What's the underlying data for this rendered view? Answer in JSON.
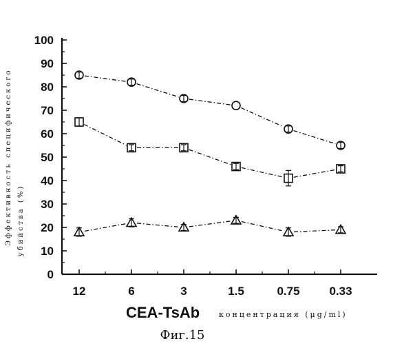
{
  "chart_data": {
    "type": "line",
    "categories": [
      "12",
      "6",
      "3",
      "1.5",
      "0.75",
      "0.33"
    ],
    "ylim": [
      0,
      100
    ],
    "yticks": [
      "0",
      "10",
      "20",
      "30",
      "40",
      "50",
      "60",
      "70",
      "80",
      "90",
      "100"
    ],
    "ylabel_line1": "Эффективность специфического",
    "ylabel_line2": "убийства   (%)",
    "xlabel_main": "CEA-TsAb",
    "xlabel_sub": "концентрация (μg/ml)",
    "caption": "Фиг.15",
    "grid": false,
    "series": [
      {
        "marker": "circle",
        "values": [
          85,
          82,
          75,
          72,
          62,
          55
        ],
        "errors": [
          1,
          1,
          1,
          0,
          1,
          1
        ]
      },
      {
        "marker": "square",
        "values": [
          65,
          54,
          54,
          46,
          41,
          45
        ],
        "errors": [
          1.5,
          1,
          1,
          1,
          3,
          1
        ]
      },
      {
        "marker": "triangle",
        "values": [
          18,
          22,
          20,
          23,
          18,
          19
        ],
        "errors": [
          1.5,
          1.5,
          1,
          1,
          1.5,
          1
        ]
      }
    ]
  }
}
